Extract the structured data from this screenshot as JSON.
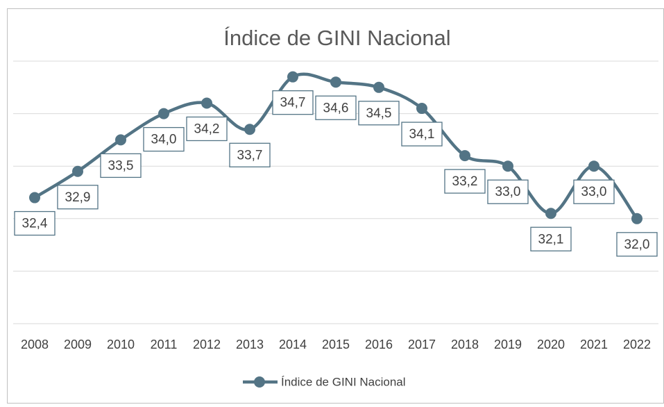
{
  "chart_data": {
    "type": "line",
    "title": "Índice de GINI Nacional",
    "categories": [
      "2008",
      "2009",
      "2010",
      "2011",
      "2012",
      "2013",
      "2014",
      "2015",
      "2016",
      "2017",
      "2018",
      "2019",
      "2020",
      "2021",
      "2022"
    ],
    "series": [
      {
        "name": "Índice de GINI Nacional",
        "color": "#537485",
        "values": [
          32.4,
          32.9,
          33.5,
          34.0,
          34.2,
          33.7,
          34.7,
          34.6,
          34.5,
          34.1,
          33.2,
          33.0,
          32.1,
          33.0,
          32.0
        ],
        "value_labels": [
          "32,4",
          "32,9",
          "33,5",
          "34,0",
          "34,2",
          "33,7",
          "34,7",
          "34,6",
          "34,5",
          "34,1",
          "33,2",
          "33,0",
          "32,1",
          "33,0",
          "32,0"
        ]
      }
    ],
    "ylim": [
      30,
      35
    ],
    "yticks": [
      30,
      31,
      32,
      33,
      34,
      35
    ],
    "grid": true,
    "legend": "bottom"
  }
}
